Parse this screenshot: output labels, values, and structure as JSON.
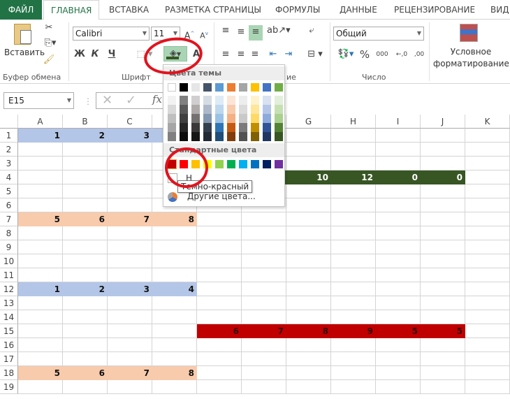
{
  "tabs": [
    "ФАЙЛ",
    "ГЛАВНАЯ",
    "ВСТАВКА",
    "РАЗМЕТКА СТРАНИЦЫ",
    "ФОРМУЛЫ",
    "ДАННЫЕ",
    "РЕЦЕНЗИРОВАНИЕ",
    "ВИД"
  ],
  "ribbon": {
    "paste_label": "Вставить",
    "clipboard_group": "Буфер обмена",
    "font_name": "Calibri",
    "font_size": "11",
    "bold": "Ж",
    "italic": "К",
    "underline": "Ч",
    "font_color_glyph": "A",
    "font_group": "Шрифт",
    "alignment_group_partial": "ие",
    "number_format": "Общий",
    "percent": "%",
    "thousands": "000",
    "number_group": "Число",
    "cond_format_line1": "Условное",
    "cond_format_line2": "форматирование"
  },
  "formula_bar": {
    "name_box": "E15",
    "fx": "fx"
  },
  "columns": [
    "A",
    "B",
    "C",
    "D",
    "E",
    "F",
    "G",
    "H",
    "I",
    "J",
    "K"
  ],
  "rows": [
    "1",
    "2",
    "3",
    "4",
    "5",
    "6",
    "7",
    "8",
    "9",
    "10",
    "11",
    "12",
    "13",
    "14",
    "15",
    "16",
    "17",
    "18",
    "19"
  ],
  "cells": [
    {
      "row": 1,
      "col": "A",
      "value": "1",
      "fill": "#b4c6e7"
    },
    {
      "row": 1,
      "col": "B",
      "value": "2",
      "fill": "#b4c6e7"
    },
    {
      "row": 1,
      "col": "C",
      "value": "3",
      "fill": "#b4c6e7"
    },
    {
      "row": 1,
      "col": "D",
      "value": "",
      "fill": "#b4c6e7"
    },
    {
      "row": 4,
      "col": "E",
      "value": "",
      "fill": "#375623"
    },
    {
      "row": 4,
      "col": "F",
      "value": "",
      "fill": "#375623"
    },
    {
      "row": 4,
      "col": "G",
      "value": "10",
      "fill": "#375623",
      "color": "#fff"
    },
    {
      "row": 4,
      "col": "H",
      "value": "12",
      "fill": "#375623",
      "color": "#fff"
    },
    {
      "row": 4,
      "col": "I",
      "value": "0",
      "fill": "#375623",
      "color": "#fff"
    },
    {
      "row": 4,
      "col": "J",
      "value": "0",
      "fill": "#375623",
      "color": "#fff"
    },
    {
      "row": 7,
      "col": "A",
      "value": "5",
      "fill": "#f8cbad"
    },
    {
      "row": 7,
      "col": "B",
      "value": "6",
      "fill": "#f8cbad"
    },
    {
      "row": 7,
      "col": "C",
      "value": "7",
      "fill": "#f8cbad"
    },
    {
      "row": 7,
      "col": "D",
      "value": "8",
      "fill": "#f8cbad"
    },
    {
      "row": 12,
      "col": "A",
      "value": "1",
      "fill": "#b4c6e7"
    },
    {
      "row": 12,
      "col": "B",
      "value": "2",
      "fill": "#b4c6e7"
    },
    {
      "row": 12,
      "col": "C",
      "value": "3",
      "fill": "#b4c6e7"
    },
    {
      "row": 12,
      "col": "D",
      "value": "4",
      "fill": "#b4c6e7"
    },
    {
      "row": 15,
      "col": "E",
      "value": "6",
      "fill": "#c00000",
      "color": "#3a0000"
    },
    {
      "row": 15,
      "col": "F",
      "value": "7",
      "fill": "#c00000",
      "color": "#3a0000"
    },
    {
      "row": 15,
      "col": "G",
      "value": "8",
      "fill": "#c00000",
      "color": "#3a0000"
    },
    {
      "row": 15,
      "col": "H",
      "value": "9",
      "fill": "#c00000",
      "color": "#3a0000"
    },
    {
      "row": 15,
      "col": "I",
      "value": "5",
      "fill": "#c00000",
      "color": "#3a0000"
    },
    {
      "row": 15,
      "col": "J",
      "value": "5",
      "fill": "#c00000",
      "color": "#3a0000"
    },
    {
      "row": 18,
      "col": "A",
      "value": "5",
      "fill": "#f8cbad"
    },
    {
      "row": 18,
      "col": "B",
      "value": "6",
      "fill": "#f8cbad"
    },
    {
      "row": 18,
      "col": "C",
      "value": "7",
      "fill": "#f8cbad"
    },
    {
      "row": 18,
      "col": "D",
      "value": "8",
      "fill": "#f8cbad"
    }
  ],
  "fill_dropdown": {
    "theme_header": "Цвета темы",
    "theme_top": [
      "#ffffff",
      "#000000",
      "#e7e6e6",
      "#44546a",
      "#5b9bd5",
      "#ed7d31",
      "#a5a5a5",
      "#ffc000",
      "#4472c4",
      "#70ad47"
    ],
    "theme_shades": [
      [
        "#f2f2f2",
        "#d9d9d9",
        "#bfbfbf",
        "#a6a6a6",
        "#808080"
      ],
      [
        "#808080",
        "#595959",
        "#404040",
        "#262626",
        "#0d0d0d"
      ],
      [
        "#d0cece",
        "#aeaaaa",
        "#757171",
        "#3a3838",
        "#171616"
      ],
      [
        "#d6dce4",
        "#adb9ca",
        "#8497b0",
        "#333f4f",
        "#222b35"
      ],
      [
        "#ddebf7",
        "#bdd7ee",
        "#9bc2e6",
        "#2f75b5",
        "#1f4e78"
      ],
      [
        "#fce4d6",
        "#f8cbad",
        "#f4b084",
        "#c65911",
        "#833c0c"
      ],
      [
        "#ededed",
        "#dbdbdb",
        "#c9c9c9",
        "#7b7b7b",
        "#525252"
      ],
      [
        "#fff2cc",
        "#ffe699",
        "#ffd966",
        "#bf8f00",
        "#806000"
      ],
      [
        "#d9e1f2",
        "#b4c6e7",
        "#8ea9db",
        "#305496",
        "#203764"
      ],
      [
        "#e2efda",
        "#c6e0b4",
        "#a9d08e",
        "#548235",
        "#375623"
      ]
    ],
    "standard_header": "Стандартные цвета",
    "standard": [
      "#c00000",
      "#ff0000",
      "#ffc000",
      "#ffff00",
      "#92d050",
      "#00b050",
      "#00b0f0",
      "#0070c0",
      "#002060",
      "#7030a0"
    ],
    "no_fill_partial": "Н",
    "tooltip": "Темно-красный",
    "more_colors": "Другие цвета..."
  },
  "accent": "#217346",
  "annotation_color": "#e0141e"
}
